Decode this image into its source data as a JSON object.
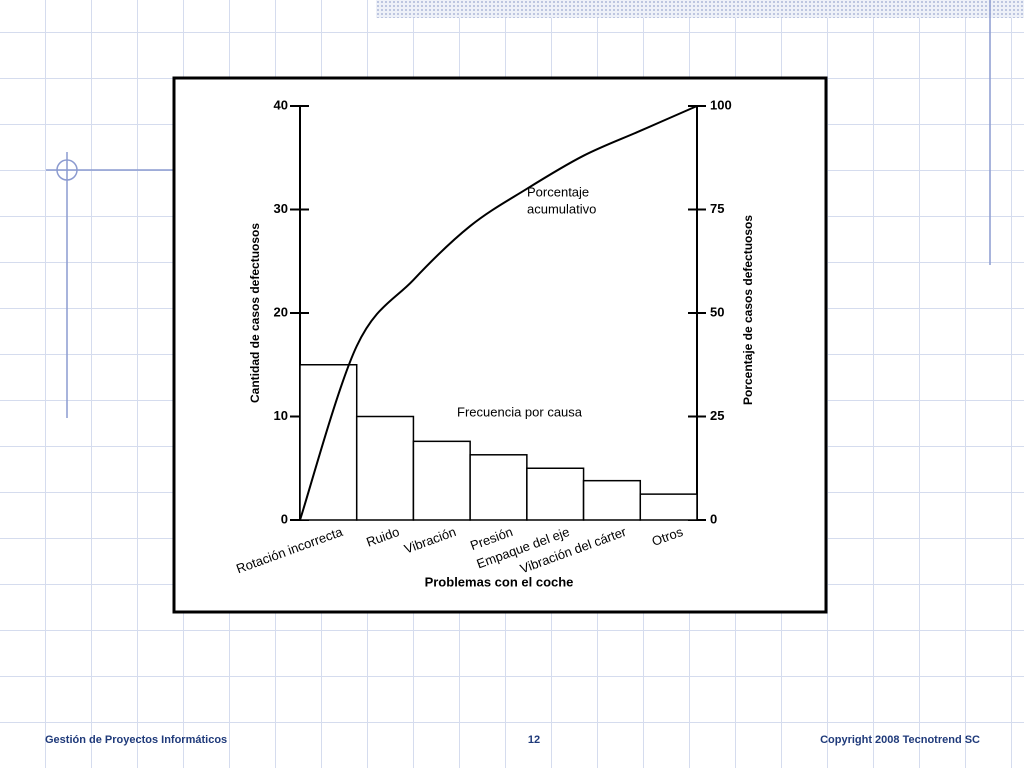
{
  "chart_data": {
    "type": "pareto",
    "categories": [
      "Rotación incorrecta",
      "Ruido",
      "Vibración",
      "Presión",
      "Empaque del eje",
      "Vibración del cárter",
      "Otros"
    ],
    "series": [
      {
        "values": [
          15,
          10,
          7.6,
          6.3,
          5,
          3.8,
          2.5
        ],
        "color": "#ffffff",
        "stroke": "#000000"
      },
      {
        "x": [
          0,
          1,
          2,
          3,
          4,
          5,
          6,
          7
        ],
        "values": [
          0,
          42,
          58,
          71,
          80,
          88,
          94,
          100
        ],
        "axis": "y2",
        "color": "#000000"
      }
    ],
    "xlim": [
      0,
      7
    ],
    "ylim": [
      0,
      40
    ],
    "yticks": [
      0,
      10,
      20,
      30,
      40
    ],
    "y2lim": [
      0,
      100
    ],
    "y2ticks": [
      0,
      25,
      50,
      75,
      100
    ],
    "x_label": "Problemas con el coche",
    "y_label": "Cantidad de casos defectuosos",
    "y2_label": "Porcentaje de casos defectuosos",
    "annotations": {
      "cumulative": [
        "Porcentaje",
        "acumulativo"
      ],
      "frequency": "Frecuencia por causa"
    }
  },
  "footer": {
    "left": "Gestión de Proyectos Informáticos",
    "page": "12",
    "right": "Copyright  2008 Tecnotrend SC"
  }
}
